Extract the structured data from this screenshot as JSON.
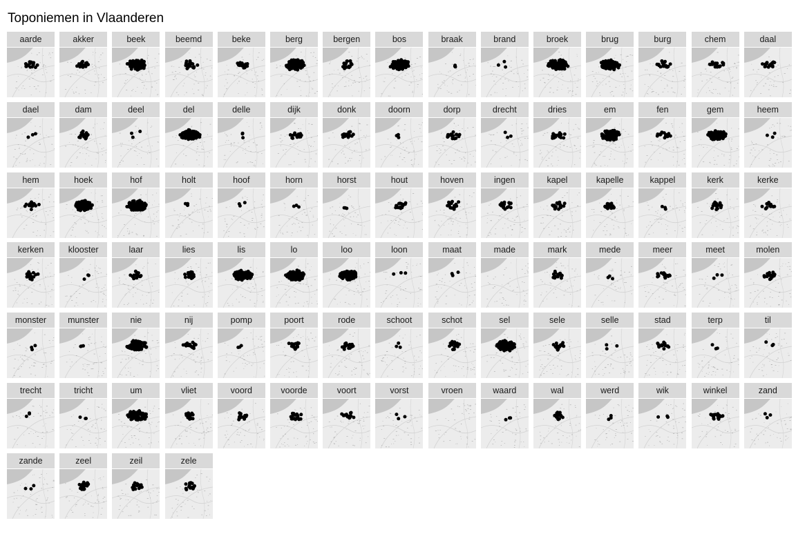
{
  "title": "Toponiemen in Vlaanderen",
  "facets": [
    "aarde",
    "akker",
    "beek",
    "beemd",
    "beke",
    "berg",
    "bergen",
    "bos",
    "braak",
    "brand",
    "broek",
    "brug",
    "burg",
    "chem",
    "daal",
    "dael",
    "dam",
    "deel",
    "del",
    "delle",
    "dijk",
    "donk",
    "doorn",
    "dorp",
    "drecht",
    "dries",
    "em",
    "fen",
    "gem",
    "heem",
    "hem",
    "hoek",
    "hof",
    "holt",
    "hoof",
    "horn",
    "horst",
    "hout",
    "hoven",
    "ingen",
    "kapel",
    "kapelle",
    "kappel",
    "kerk",
    "kerke",
    "kerken",
    "klooster",
    "laar",
    "lies",
    "lis",
    "lo",
    "loo",
    "loon",
    "maat",
    "made",
    "mark",
    "mede",
    "meer",
    "meet",
    "molen",
    "monster",
    "munster",
    "nie",
    "nij",
    "pomp",
    "poort",
    "rode",
    "schoot",
    "schot",
    "sel",
    "sele",
    "selle",
    "stad",
    "terp",
    "til",
    "trecht",
    "tricht",
    "um",
    "vliet",
    "voord",
    "voorde",
    "voort",
    "vorst",
    "vroen",
    "waard",
    "wal",
    "werd",
    "wik",
    "winkel",
    "zand",
    "zande",
    "zeel",
    "zeil",
    "zele"
  ],
  "colors": {
    "strip": "#d9d9d9",
    "map_land": "#ececec",
    "map_sea": "#c6c6c6",
    "points": "#000000"
  },
  "marker": "filled-circle"
}
